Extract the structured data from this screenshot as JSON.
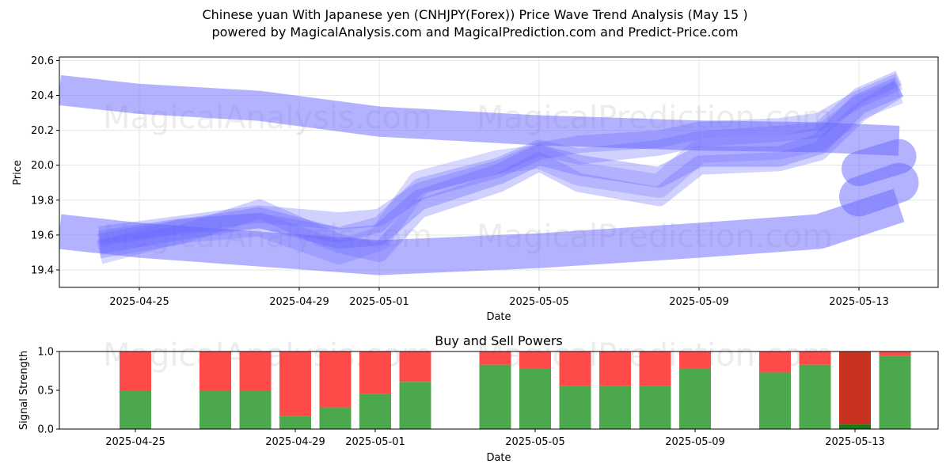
{
  "title": "Chinese yuan With Japanese yen (CNHJPY(Forex)) Price Wave Trend Analysis (May 15 )",
  "subtitle": "powered by MagicalAnalysis.com and MagicalPrediction.com and Predict-Price.com",
  "watermarks": [
    "MagicalAnalysis.com",
    "MagicalPrediction.com"
  ],
  "colors": {
    "band": "#6666ff",
    "buy": "#4ca84c",
    "sell": "#ff4a4a",
    "sell_strong": "#c8321e",
    "buy_strong": "#1a7a1a"
  },
  "chart_data": [
    {
      "type": "line",
      "title": "",
      "xlabel": "Date",
      "ylabel": "Price",
      "xlim": [
        "2025-04-23",
        "2025-05-15"
      ],
      "ylim": [
        19.3,
        20.62
      ],
      "yticks": [
        "19.4",
        "19.6",
        "19.8",
        "20.0",
        "20.2",
        "20.4",
        "20.6"
      ],
      "xticks": [
        "2025-04-25",
        "2025-04-29",
        "2025-05-01",
        "2025-05-05",
        "2025-05-09",
        "2025-05-13"
      ],
      "grid": true,
      "series": [
        {
          "x": [
            "2025-04-23",
            "2025-04-25",
            "2025-04-28",
            "2025-05-01",
            "2025-05-05",
            "2025-05-09",
            "2025-05-12",
            "2025-05-14"
          ],
          "y": [
            20.43,
            20.38,
            20.34,
            20.25,
            20.2,
            20.17,
            20.16,
            20.14
          ]
        },
        {
          "x": [
            "2025-04-23",
            "2025-04-25",
            "2025-04-28",
            "2025-05-01",
            "2025-05-05",
            "2025-05-09",
            "2025-05-12",
            "2025-05-14"
          ],
          "y": [
            19.62,
            19.57,
            19.52,
            19.47,
            19.51,
            19.57,
            19.62,
            19.77
          ]
        },
        {
          "x": [
            "2025-04-24",
            "2025-04-26",
            "2025-04-28",
            "2025-04-30",
            "2025-05-01",
            "2025-05-02",
            "2025-05-04",
            "2025-05-05",
            "2025-05-06",
            "2025-05-08",
            "2025-05-09",
            "2025-05-11",
            "2025-05-12",
            "2025-05-13",
            "2025-05-14"
          ],
          "y": [
            19.55,
            19.63,
            19.7,
            19.58,
            19.6,
            19.8,
            19.95,
            20.06,
            20.0,
            19.93,
            20.05,
            20.05,
            20.12,
            20.35,
            20.45
          ]
        },
        {
          "x": [
            "2025-04-24",
            "2025-04-26",
            "2025-04-28",
            "2025-04-30",
            "2025-05-01",
            "2025-05-02",
            "2025-05-04",
            "2025-05-05",
            "2025-05-06",
            "2025-05-08",
            "2025-05-09",
            "2025-05-11",
            "2025-05-12",
            "2025-05-13",
            "2025-05-14"
          ],
          "y": [
            19.6,
            19.66,
            19.72,
            19.68,
            19.7,
            19.85,
            19.98,
            20.08,
            20.12,
            20.15,
            20.2,
            20.22,
            20.25,
            20.38,
            20.48
          ]
        },
        {
          "x": [
            "2025-04-24",
            "2025-04-26",
            "2025-04-28",
            "2025-04-30",
            "2025-05-01",
            "2025-05-02",
            "2025-05-04",
            "2025-05-05",
            "2025-05-06",
            "2025-05-08",
            "2025-05-09",
            "2025-05-11",
            "2025-05-12",
            "2025-05-13",
            "2025-05-14"
          ],
          "y": [
            19.52,
            19.6,
            19.75,
            19.55,
            19.5,
            19.75,
            19.9,
            20.02,
            19.9,
            19.82,
            20.0,
            20.02,
            20.08,
            20.3,
            20.44
          ]
        },
        {
          "x": [
            "2025-04-24",
            "2025-04-26",
            "2025-04-28",
            "2025-04-30",
            "2025-05-01",
            "2025-05-02",
            "2025-05-04",
            "2025-05-05",
            "2025-05-06",
            "2025-05-08",
            "2025-05-09",
            "2025-05-11",
            "2025-05-12",
            "2025-05-13",
            "2025-05-14"
          ],
          "y": [
            19.58,
            19.65,
            19.68,
            19.6,
            19.66,
            19.88,
            20.0,
            20.1,
            20.05,
            20.1,
            20.15,
            20.18,
            20.2,
            20.4,
            20.5
          ]
        },
        {
          "x": [
            "2025-04-24",
            "2025-04-26",
            "2025-04-28",
            "2025-04-30",
            "2025-05-01",
            "2025-05-02",
            "2025-05-04",
            "2025-05-05",
            "2025-05-06",
            "2025-05-08",
            "2025-05-09",
            "2025-05-11",
            "2025-05-12",
            "2025-05-13",
            "2025-05-14"
          ],
          "y": [
            19.5,
            19.62,
            19.66,
            19.5,
            19.58,
            19.9,
            20.02,
            20.05,
            19.95,
            19.88,
            20.08,
            20.1,
            20.15,
            20.33,
            20.42
          ]
        },
        {
          "x": [
            "2025-05-13",
            "2025-05-14"
          ],
          "y": [
            19.98,
            20.05
          ]
        },
        {
          "x": [
            "2025-05-13",
            "2025-05-14"
          ],
          "y": [
            19.82,
            19.9
          ]
        }
      ]
    },
    {
      "type": "bar",
      "title": "Buy and Sell Powers",
      "xlabel": "Date",
      "ylabel": "Signal Strength",
      "ylim": [
        0,
        1.0
      ],
      "yticks": [
        "0.0",
        "0.5",
        "1.0"
      ],
      "xticks": [
        "2025-04-25",
        "2025-04-29",
        "2025-05-01",
        "2025-05-05",
        "2025-05-09",
        "2025-05-13"
      ],
      "categories": [
        "2025-04-25",
        "2025-04-27",
        "2025-04-28",
        "2025-04-29",
        "2025-04-30",
        "2025-05-01",
        "2025-05-02",
        "2025-05-04",
        "2025-05-05",
        "2025-05-06",
        "2025-05-07",
        "2025-05-08",
        "2025-05-09",
        "2025-05-11",
        "2025-05-12",
        "2025-05-13",
        "2025-05-14"
      ],
      "series": [
        {
          "name": "Buy",
          "values": [
            0.5,
            0.5,
            0.5,
            0.17,
            0.28,
            0.45,
            0.61,
            0.83,
            0.78,
            0.56,
            0.56,
            0.56,
            0.78,
            0.73,
            0.83,
            0.06,
            0.94
          ]
        },
        {
          "name": "Sell",
          "values": [
            0.5,
            0.5,
            0.5,
            0.83,
            0.72,
            0.55,
            0.39,
            0.17,
            0.22,
            0.44,
            0.44,
            0.44,
            0.22,
            0.27,
            0.17,
            0.94,
            0.06
          ]
        }
      ]
    }
  ]
}
